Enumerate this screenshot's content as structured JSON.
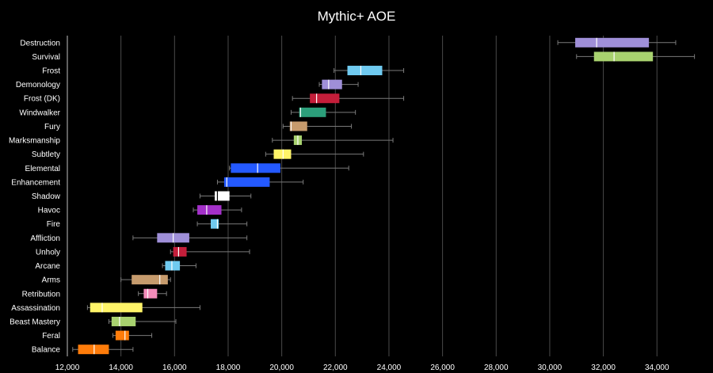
{
  "chart_data": {
    "type": "boxplot",
    "title": "Mythic+ AOE",
    "xlabel": "",
    "ylabel": "",
    "xlim": [
      12000,
      35500
    ],
    "xticks": [
      12000,
      14000,
      16000,
      18000,
      20000,
      22000,
      24000,
      26000,
      28000,
      30000,
      32000,
      34000
    ],
    "xtick_labels": [
      "12,000",
      "14,000",
      "16,000",
      "18,000",
      "20,000",
      "22,000",
      "24,000",
      "26,000",
      "28,000",
      "30,000",
      "32,000",
      "34,000"
    ],
    "grid": true,
    "legend": "none",
    "series": [
      {
        "label": "Destruction",
        "color": "#9f8fd8",
        "min": 30300,
        "q1": 30950,
        "median": 31750,
        "q3": 33700,
        "max": 34700
      },
      {
        "label": "Survival",
        "color": "#a8d26f",
        "min": 31000,
        "q1": 31650,
        "median": 32400,
        "q3": 33850,
        "max": 35400
      },
      {
        "label": "Frost",
        "color": "#6fcaf0",
        "min": 21950,
        "q1": 22450,
        "median": 22950,
        "q3": 23750,
        "max": 24550
      },
      {
        "label": "Demonology",
        "color": "#9f8fd8",
        "min": 21400,
        "q1": 21500,
        "median": 21750,
        "q3": 22250,
        "max": 22850
      },
      {
        "label": "Frost (DK)",
        "color": "#c41e3a",
        "min": 20400,
        "q1": 21050,
        "median": 21300,
        "q3": 22150,
        "max": 24550
      },
      {
        "label": "Windwalker",
        "color": "#2c9f7b",
        "min": 20350,
        "q1": 20650,
        "median": 20700,
        "q3": 21650,
        "max": 22750
      },
      {
        "label": "Fury",
        "color": "#c69b6d",
        "min": 20050,
        "q1": 20300,
        "median": 20350,
        "q3": 20950,
        "max": 22600
      },
      {
        "label": "Marksmanship",
        "color": "#a8d26f",
        "min": 19650,
        "q1": 20450,
        "median": 20600,
        "q3": 20750,
        "max": 24150
      },
      {
        "label": "Subtlety",
        "color": "#fff468",
        "min": 19400,
        "q1": 19700,
        "median": 20050,
        "q3": 20350,
        "max": 23050
      },
      {
        "label": "Elemental",
        "color": "#2459ff",
        "min": 18050,
        "q1": 18100,
        "median": 19100,
        "q3": 19950,
        "max": 22500
      },
      {
        "label": "Enhancement",
        "color": "#2459ff",
        "min": 17600,
        "q1": 17850,
        "median": 17950,
        "q3": 19550,
        "max": 20800
      },
      {
        "label": "Shadow",
        "color": "#ffffff",
        "min": 16950,
        "q1": 17500,
        "median": 17600,
        "q3": 18050,
        "max": 18850
      },
      {
        "label": "Havoc",
        "color": "#a330c9",
        "min": 16700,
        "q1": 16850,
        "median": 17200,
        "q3": 17750,
        "max": 18500
      },
      {
        "label": "Fire",
        "color": "#6fcaf0",
        "min": 16850,
        "q1": 17350,
        "median": 17600,
        "q3": 17650,
        "max": 18700
      },
      {
        "label": "Affliction",
        "color": "#9f8fd8",
        "min": 14450,
        "q1": 15350,
        "median": 15950,
        "q3": 16550,
        "max": 18700
      },
      {
        "label": "Unholy",
        "color": "#c41e3a",
        "min": 15850,
        "q1": 15950,
        "median": 16150,
        "q3": 16450,
        "max": 18800
      },
      {
        "label": "Arcane",
        "color": "#6fcaf0",
        "min": 15550,
        "q1": 15650,
        "median": 15900,
        "q3": 16200,
        "max": 16800
      },
      {
        "label": "Arms",
        "color": "#c69b6d",
        "min": 14000,
        "q1": 14400,
        "median": 15450,
        "q3": 15750,
        "max": 15850
      },
      {
        "label": "Retribution",
        "color": "#f48cba",
        "min": 14650,
        "q1": 14850,
        "median": 15000,
        "q3": 15350,
        "max": 15700
      },
      {
        "label": "Assassination",
        "color": "#fff468",
        "min": 12750,
        "q1": 12850,
        "median": 13300,
        "q3": 14800,
        "max": 16950
      },
      {
        "label": "Beast Mastery",
        "color": "#a8d26f",
        "min": 13550,
        "q1": 13650,
        "median": 13950,
        "q3": 14550,
        "max": 16050
      },
      {
        "label": "Feral",
        "color": "#ff7c0a",
        "min": 13700,
        "q1": 13800,
        "median": 14150,
        "q3": 14300,
        "max": 15150
      },
      {
        "label": "Balance",
        "color": "#ff7c0a",
        "min": 12200,
        "q1": 12400,
        "median": 13000,
        "q3": 13550,
        "max": 14450
      }
    ]
  }
}
